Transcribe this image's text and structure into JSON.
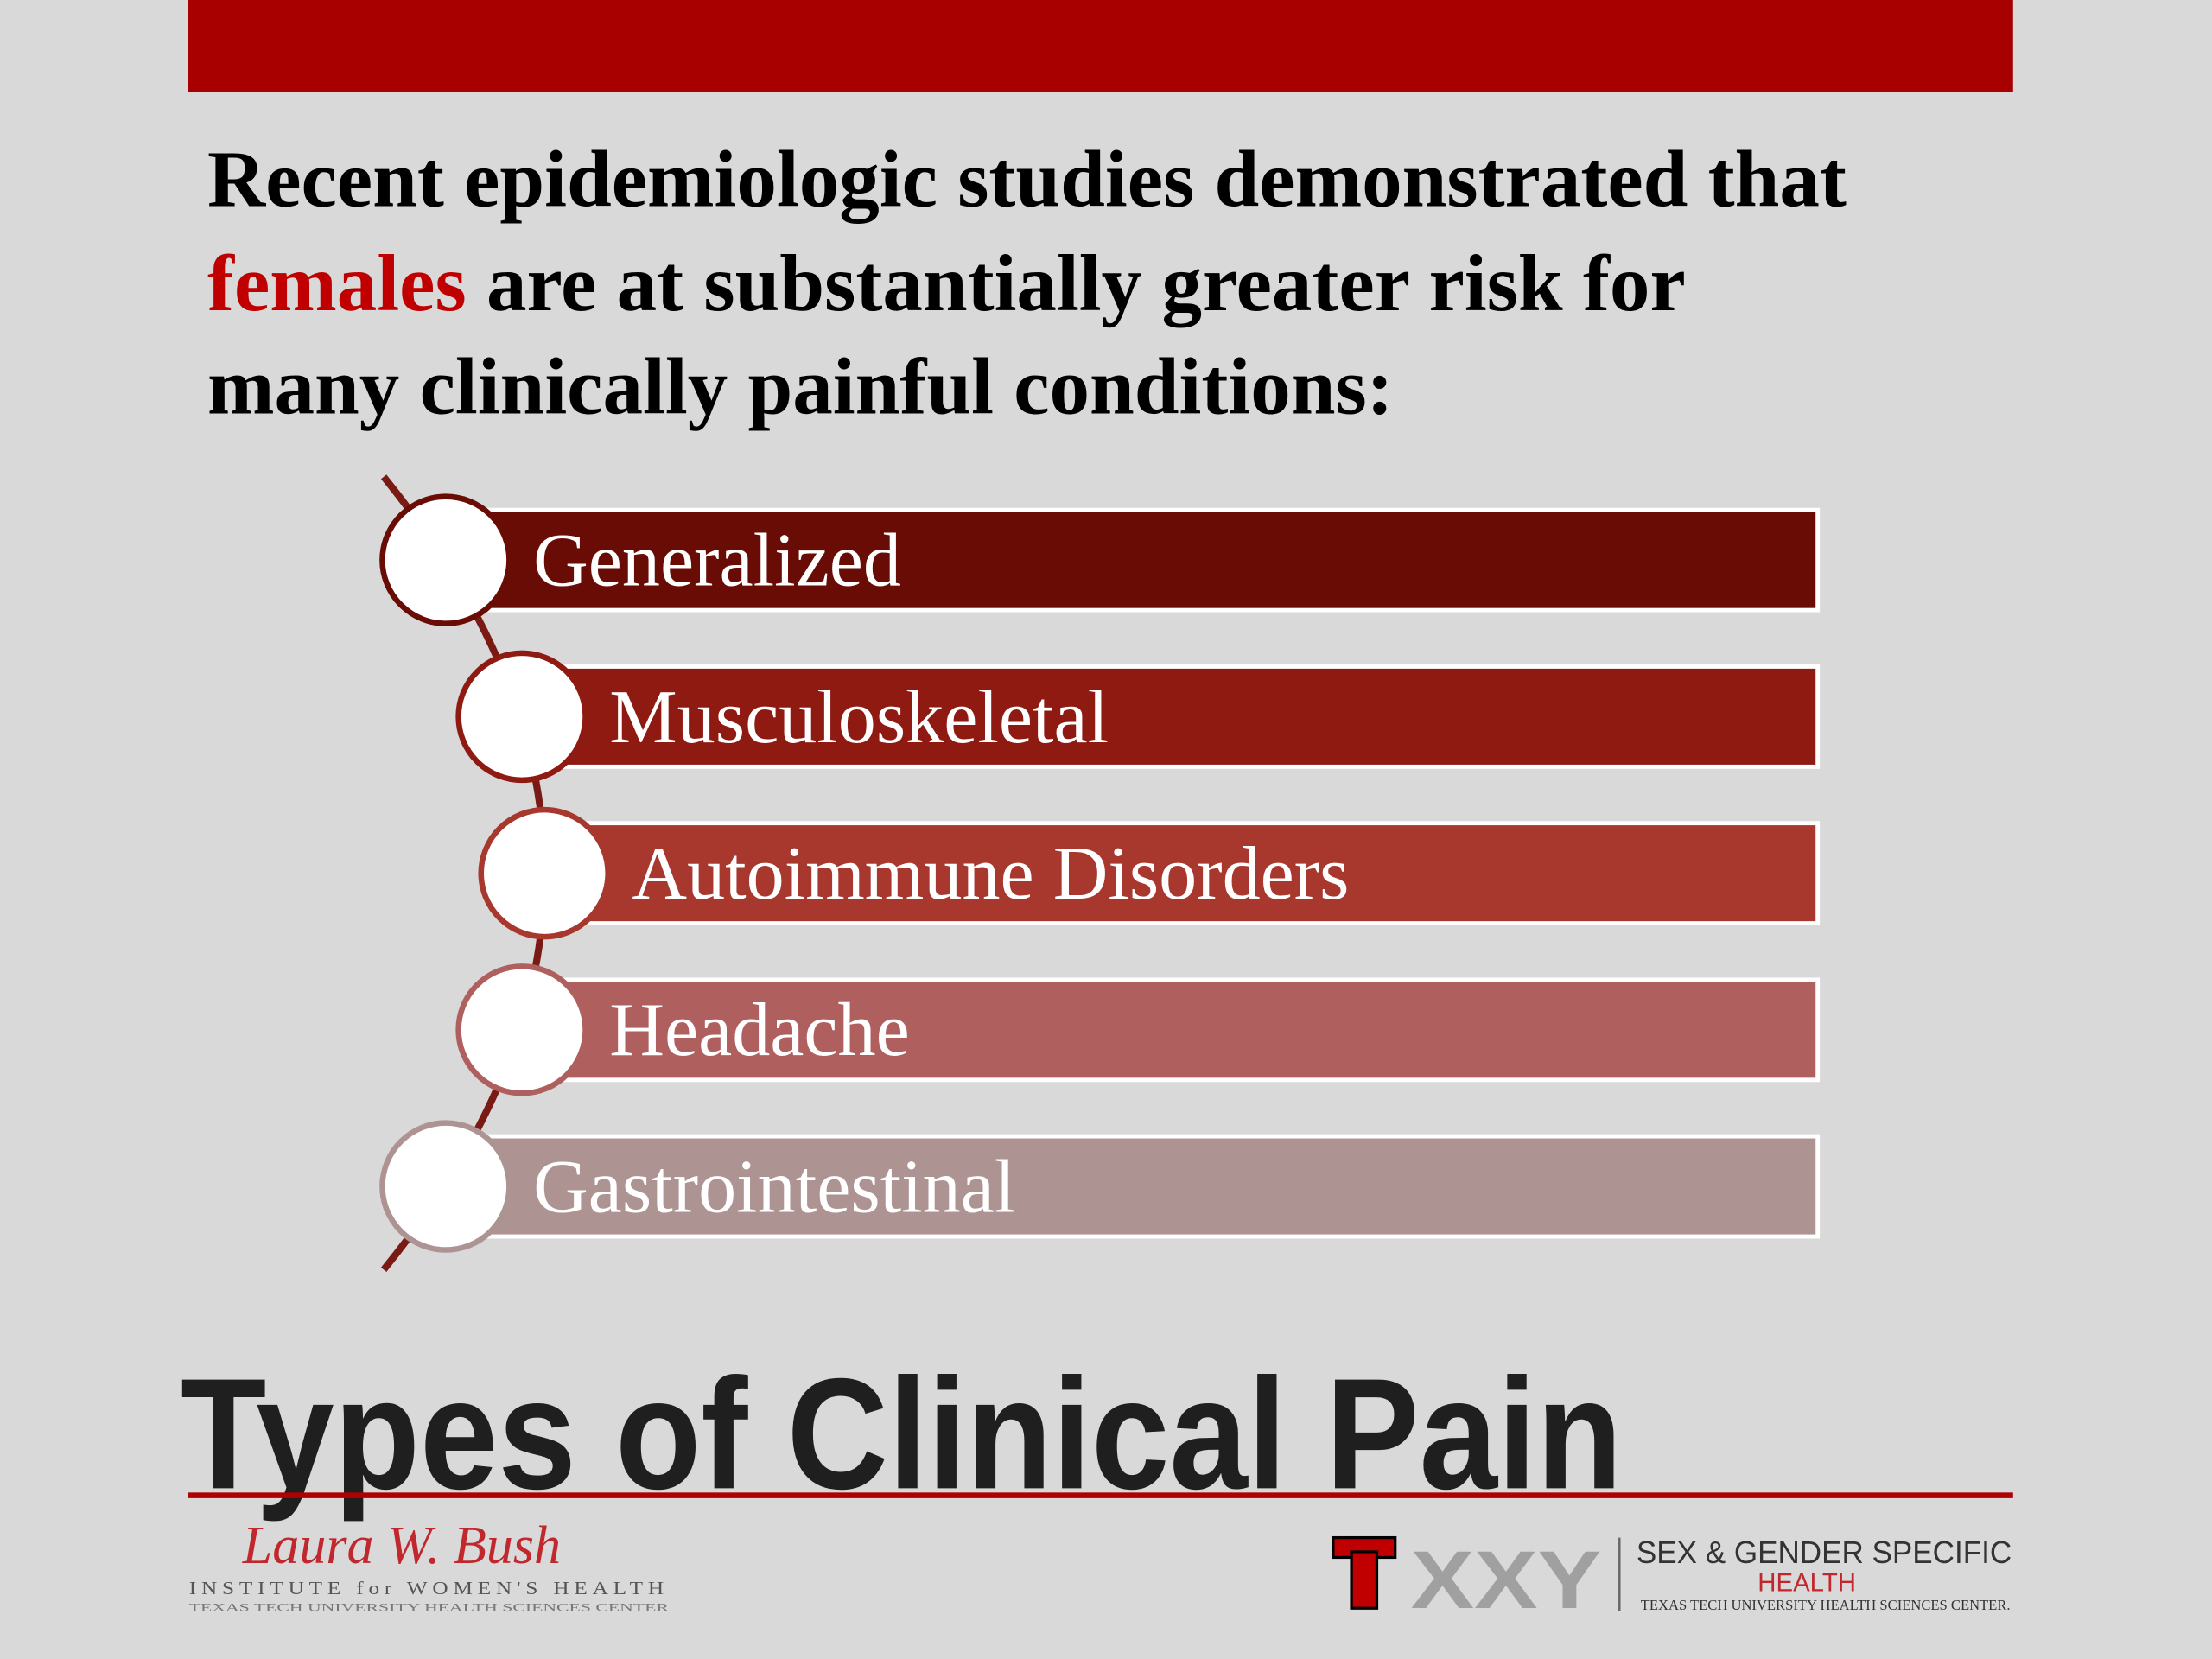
{
  "slide": {
    "intro": {
      "line1": "Recent epidemiologic studies demonstrated that",
      "highlight": "females",
      "line2": "are at substantially greater risk for",
      "line3": "many clinically painful conditions:"
    },
    "items": [
      {
        "label": "Generalized",
        "color": "#690c05"
      },
      {
        "label": "Musculoskeletal",
        "color": "#8e1a12"
      },
      {
        "label": "Autoimmune Disorders",
        "color": "#a8372e"
      },
      {
        "label": "Headache",
        "color": "#b05f5f"
      },
      {
        "label": "Gastrointestinal",
        "color": "#ad9493"
      }
    ],
    "title": "Types of Clinical Pain",
    "footer": {
      "left_signature": "Laura W. Bush",
      "left_institute": "INSTITUTE for WOMEN'S HEALTH",
      "left_university": "TEXAS TECH UNIVERSITY HEALTH SCIENCES CENTER",
      "right_logo_text": "XXY",
      "right_line1": "SEX & GENDER SPECIFIC",
      "right_line2": "HEALTH",
      "right_line3": "TEXAS TECH UNIVERSITY HEALTH SCIENCES CENTER."
    }
  }
}
